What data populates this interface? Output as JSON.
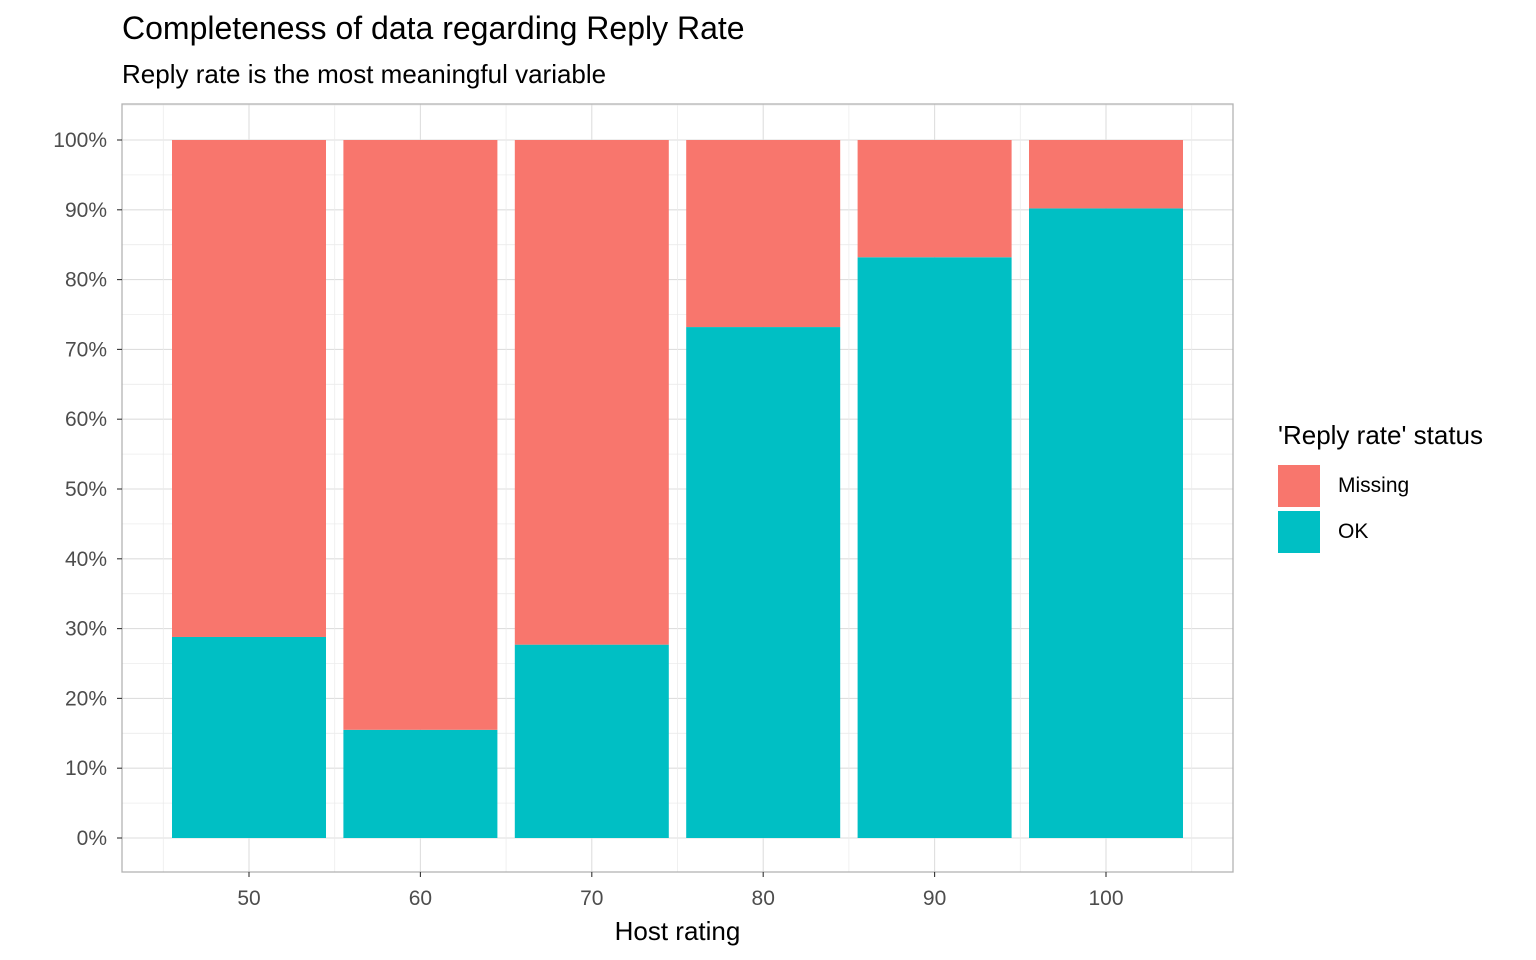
{
  "chart_data": {
    "type": "bar",
    "stacked": true,
    "title": "Completeness of data regarding Reply Rate",
    "subtitle": "Reply rate is the most meaningful variable",
    "xlabel": "Host rating",
    "ylabel": "",
    "categories": [
      "50",
      "60",
      "70",
      "80",
      "90",
      "100"
    ],
    "series": [
      {
        "name": "OK",
        "color": "#00BFC4",
        "values": [
          0.288,
          0.155,
          0.277,
          0.732,
          0.832,
          0.902
        ]
      },
      {
        "name": "Missing",
        "color": "#F8766D",
        "values": [
          0.712,
          0.845,
          0.723,
          0.268,
          0.168,
          0.098
        ]
      }
    ],
    "ylim": [
      0,
      1
    ],
    "yticks": [
      "0%",
      "10%",
      "20%",
      "30%",
      "40%",
      "50%",
      "60%",
      "70%",
      "80%",
      "90%",
      "100%"
    ],
    "legend": {
      "title": "'Reply rate' status",
      "position": "right",
      "items": [
        {
          "label": "Missing",
          "color": "#F8766D"
        },
        {
          "label": "OK",
          "color": "#00BFC4"
        }
      ]
    },
    "grid": true
  }
}
